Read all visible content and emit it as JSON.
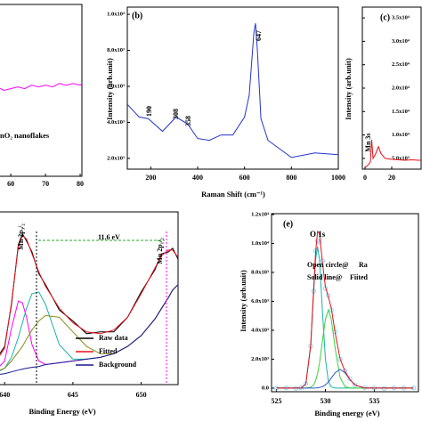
{
  "chart_data": [
    {
      "type": "line",
      "x": [
        46,
        48,
        50,
        52,
        54,
        56,
        58,
        60,
        62,
        64,
        66,
        68,
        70,
        72,
        74,
        76,
        78,
        80,
        80.5
      ],
      "series": [
        {
          "name": "nO₂ nanoflakes",
          "color": "#ff00ff",
          "values": [
            50,
            51,
            49,
            51,
            50,
            52,
            50,
            51,
            52,
            51,
            53,
            52,
            53,
            52,
            54,
            53,
            54,
            53,
            54
          ]
        }
      ],
      "xlim": [
        46,
        80.5
      ],
      "ylim": [
        0,
        100
      ],
      "xticks": [
        60,
        70,
        80
      ]
    },
    {
      "type": "line",
      "title": "(b)",
      "xlabel": "Raman Shift (cm⁻¹)",
      "ylabel": "Intensity (arb.unit)",
      "x": [
        100,
        150,
        190,
        250,
        308,
        358,
        400,
        450,
        500,
        550,
        600,
        620,
        640,
        647,
        655,
        670,
        700,
        800,
        900,
        1000
      ],
      "series": [
        {
          "color": "#2233cc",
          "values": [
            5000,
            4300,
            4200,
            3500,
            4300,
            3900,
            3100,
            3000,
            3300,
            3300,
            4300,
            5500,
            9000,
            9500,
            8000,
            4200,
            3000,
            2050,
            2300,
            2200
          ]
        }
      ],
      "xlim": [
        100,
        1000
      ],
      "ylim": [
        1400,
        10400
      ],
      "xticks": [
        200,
        400,
        600,
        800,
        1000
      ],
      "yticks": [
        {
          "value": 2000,
          "label": "2.0x10³"
        },
        {
          "value": 4000,
          "label": "4.0x10³"
        },
        {
          "value": 6000,
          "label": "6.0x10³"
        },
        {
          "value": 8000,
          "label": "8.0x10³"
        },
        {
          "value": 10000,
          "label": "1.0x10⁴"
        }
      ],
      "annotations": [
        {
          "text": "190",
          "color": "#e8101a"
        },
        {
          "text": "308",
          "color": "#e8101a"
        },
        {
          "text": "358",
          "color": "#e8101a"
        },
        {
          "text": "647",
          "color": "#e8101a"
        }
      ]
    },
    {
      "type": "line",
      "title": "(c)",
      "ylabel": "Intensity (arb.unit)",
      "x": [
        0,
        2,
        4,
        5,
        6,
        8,
        10,
        12,
        15,
        20,
        25,
        30,
        35,
        40,
        42
      ],
      "series": [
        {
          "color": "#e8101a",
          "values": [
            3000,
            3500,
            4200,
            9000,
            5000,
            6000,
            7500,
            6000,
            5000,
            4800,
            4700,
            4600,
            4700,
            4600,
            4600
          ]
        }
      ],
      "xlim": [
        -2,
        42
      ],
      "ylim": [
        2700,
        37300
      ],
      "xticks": [
        0,
        20
      ],
      "yticks": [
        {
          "value": 5000,
          "label": "5.0x10³"
        },
        {
          "value": 10000,
          "label": "1.0x10⁴"
        },
        {
          "value": 15000,
          "label": "1.5x10⁴"
        },
        {
          "value": 20000,
          "label": "2.0x10⁴"
        },
        {
          "value": 25000,
          "label": "2.5x10⁴"
        },
        {
          "value": 30000,
          "label": "3.0x10⁴"
        },
        {
          "value": 35000,
          "label": "3.5x10⁴"
        }
      ],
      "annotations": [
        {
          "text": "Mn 3s",
          "color": "#1a237e"
        }
      ]
    },
    {
      "type": "line",
      "xlabel": "Binding Energy (eV)",
      "x": [
        636.5,
        637,
        638,
        639,
        640,
        640.5,
        641,
        641.3,
        641.6,
        642,
        642.5,
        643,
        644,
        645,
        646,
        647,
        648,
        649,
        650,
        651,
        651.5,
        652,
        652.3,
        652.7
      ],
      "series": [
        {
          "color": "#ff00ff",
          "values": [
            2,
            3,
            4,
            5,
            13,
            31,
            46,
            45,
            37,
            22,
            13,
            11,
            12,
            13,
            14,
            15,
            17,
            21,
            27,
            36,
            42,
            48,
            52,
            55
          ]
        },
        {
          "color": "#19b2a8",
          "values": [
            2,
            3,
            4,
            5,
            9,
            15,
            26,
            34,
            42,
            50,
            51,
            44,
            22,
            14,
            14,
            15,
            17,
            21,
            27,
            36,
            42,
            48,
            52,
            55
          ]
        },
        {
          "color": "#8a8a1a",
          "values": [
            2,
            3,
            4,
            6,
            9,
            13,
            18,
            21,
            25,
            30,
            35,
            38,
            37,
            29,
            21,
            17,
            17,
            21,
            27,
            36,
            42,
            48,
            52,
            55
          ]
        },
        {
          "name": "Raw data",
          "color": "#000000",
          "values": [
            3,
            5,
            6,
            10,
            21,
            44,
            77,
            83,
            79,
            73,
            61,
            55,
            41,
            35,
            28,
            29,
            29,
            37,
            51,
            63,
            72,
            73,
            75,
            69
          ]
        },
        {
          "name": "Fitted",
          "color": "#e8101a",
          "values": [
            3,
            4,
            6,
            9,
            20,
            45,
            76,
            82,
            80,
            72,
            62,
            54,
            42,
            34,
            29,
            28,
            30,
            37,
            50,
            64,
            71,
            74,
            74,
            70
          ]
        },
        {
          "name": "Background",
          "color": "#1a1a8c",
          "values": [
            2,
            3,
            4,
            5,
            6,
            7,
            8,
            8.5,
            9,
            9.5,
            10,
            11,
            12,
            13,
            14,
            15,
            17,
            21,
            27,
            36,
            42,
            48,
            52,
            55
          ]
        }
      ],
      "xlim": [
        636.4,
        652.7
      ],
      "ylim": [
        0,
        95
      ],
      "xticks": [
        640,
        645,
        650
      ],
      "annotations": [
        {
          "text": "Mn 2p₃/₂",
          "color": "#1a237e"
        },
        {
          "text": "Mn 2p₁/₂",
          "color": "#ff00ff"
        },
        {
          "text": "11.6 eV",
          "color": "#22aa22"
        }
      ]
    },
    {
      "type": "line",
      "title": "(e)",
      "xlabel": "Binding energy (eV)",
      "ylabel": "Intensity (arb.unit)",
      "x": [
        525,
        526,
        527,
        527.5,
        528,
        528.5,
        528.8,
        529,
        529.2,
        529.4,
        529.7,
        530,
        530.3,
        530.6,
        531,
        531.5,
        532,
        532.5,
        533,
        534,
        535,
        536,
        537,
        538,
        539
      ],
      "series": [
        {
          "color": "#7fd3f0",
          "mode": "markers",
          "values": [
            0,
            20,
            -10,
            30,
            300,
            2900,
            6700,
            9500,
            10200,
            10100,
            8800,
            6900,
            6400,
            5400,
            3900,
            2000,
            1200,
            650,
            200,
            40,
            10,
            -20,
            20,
            0,
            10
          ]
        },
        {
          "color": "#19b2a8",
          "values": [
            0,
            0,
            0,
            8,
            278,
            2920,
            6600,
            8880,
            9800,
            8880,
            5290,
            2020,
            490,
            78,
            3,
            0,
            0,
            0,
            0,
            0,
            0,
            0,
            0,
            0,
            0
          ]
        },
        {
          "color": "#39d339",
          "values": [
            0,
            0,
            0,
            0,
            3,
            60,
            237,
            515,
            1005,
            1750,
            3275,
            4765,
            5400,
            4765,
            2735,
            730,
            98,
            7,
            0,
            0,
            0,
            0,
            0,
            0,
            0
          ]
        },
        {
          "color": "#3355cc",
          "values": [
            0,
            0,
            0,
            0,
            0,
            1,
            4,
            10,
            21,
            41,
            104,
            224,
            422,
            690,
            1070,
            1300,
            1070,
            596,
            224,
            10,
            0,
            0,
            0,
            0,
            0
          ]
        },
        {
          "color": "#e8101a",
          "values": [
            0,
            0,
            0,
            8,
            281,
            2981,
            6841,
            9405,
            10826,
            10671,
            8669,
            7009,
            6312,
            5533,
            3808,
            2030,
            1168,
            603,
            224,
            10,
            0,
            0,
            0,
            0,
            0
          ]
        }
      ],
      "xlim": [
        524.5,
        539.5
      ],
      "ylim": [
        -250,
        12060
      ],
      "xticks": [
        525,
        530,
        535
      ],
      "yticks": [
        {
          "value": 0,
          "label": "0.0"
        },
        {
          "value": 2000,
          "label": "2.0x10³"
        },
        {
          "value": 4000,
          "label": "4.0x10³"
        },
        {
          "value": 6000,
          "label": "6.0x10³"
        },
        {
          "value": 8000,
          "label": "8.0x10³"
        },
        {
          "value": 10000,
          "label": "1.0x10⁴"
        },
        {
          "value": 12000,
          "label": "1.2x10⁴"
        }
      ],
      "annotations": [
        {
          "text": "O 1s",
          "color": "#e8101a"
        },
        {
          "text": "Open circle@",
          "color": "#ff00ff"
        },
        {
          "text": "Ra",
          "color": "#7fd3f0"
        },
        {
          "text": "Solid line@",
          "color": "#ff00ff"
        },
        {
          "text": "Fiited",
          "color": "#2233cc"
        }
      ]
    }
  ]
}
